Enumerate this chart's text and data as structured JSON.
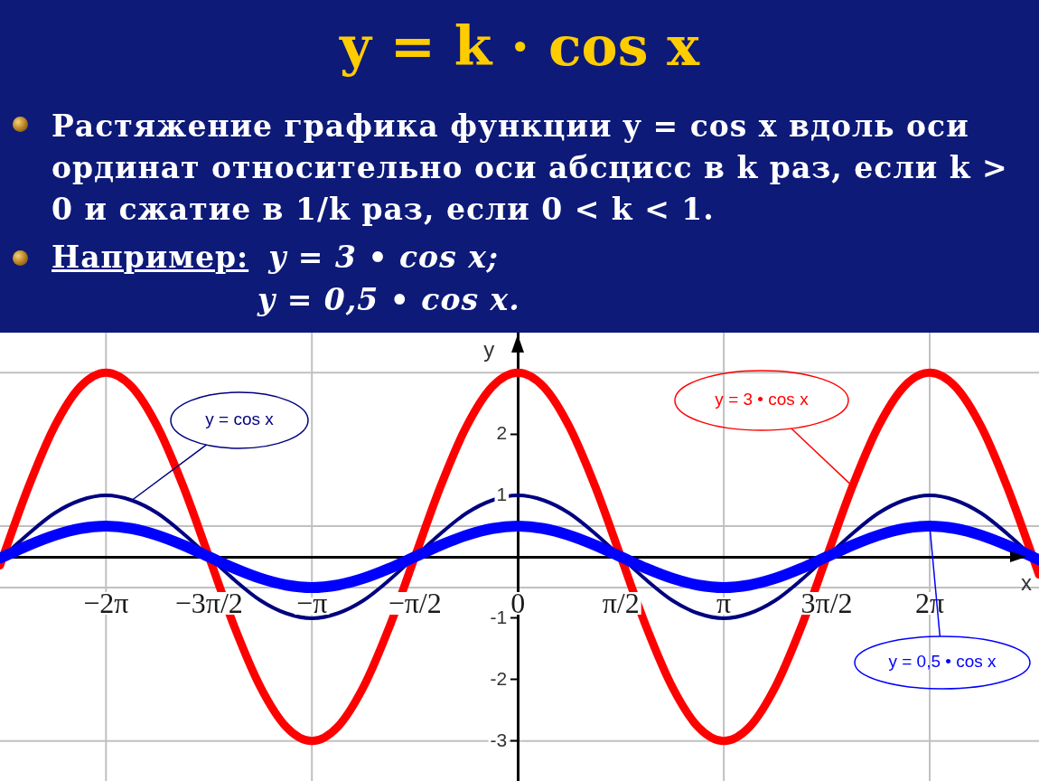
{
  "chart_data": {
    "type": "line",
    "title": "y = k · cos x",
    "annotations": [
      "Растяжение графика функции y = cos x вдоль оси ординат относительно оси абсцисс в k раз, если k > 0 и сжатие в 1/k раз, если 0 < k < 1.",
      "Например:",
      "y = 3 • cos x;",
      "y = 0,5 • cos x."
    ],
    "xlabel": "x",
    "ylabel": "y",
    "x": [
      -7.9,
      -7.854,
      -7.461,
      -7.069,
      -6.676,
      -6.283,
      -5.89,
      -5.498,
      -5.105,
      -4.712,
      -4.32,
      -3.927,
      -3.534,
      -3.142,
      -2.749,
      -2.356,
      -1.963,
      -1.571,
      -1.178,
      -0.785,
      -0.393,
      0,
      0.393,
      0.785,
      1.178,
      1.571,
      1.963,
      2.356,
      2.749,
      3.142,
      3.534,
      3.927,
      4.32,
      4.712,
      5.105,
      5.498,
      5.89,
      6.283,
      6.676,
      7.069,
      7.461,
      7.854,
      7.95
    ],
    "series": [
      {
        "name": "y = cos x",
        "color": "#000080",
        "values": [
          -0.05,
          0,
          0.38,
          0.71,
          0.92,
          1,
          0.92,
          0.71,
          0.38,
          0,
          -0.38,
          -0.71,
          -0.92,
          -1,
          -0.92,
          -0.71,
          -0.38,
          0,
          0.38,
          0.71,
          0.92,
          1,
          0.92,
          0.71,
          0.38,
          0,
          -0.38,
          -0.71,
          -0.92,
          -1,
          -0.92,
          -0.71,
          -0.38,
          0,
          0.38,
          0.71,
          0.92,
          1,
          0.92,
          0.71,
          0.38,
          0,
          -0.1
        ]
      },
      {
        "name": "y = 3 • cos x",
        "color": "#ff0000",
        "values": [
          -0.14,
          0,
          1.15,
          2.12,
          2.77,
          3,
          2.77,
          2.12,
          1.15,
          0,
          -1.15,
          -2.12,
          -2.77,
          -3,
          -2.77,
          -2.12,
          -1.15,
          0,
          1.15,
          2.12,
          2.77,
          3,
          2.77,
          2.12,
          1.15,
          0,
          -1.15,
          -2.12,
          -2.77,
          -3,
          -2.77,
          -2.12,
          -1.15,
          0,
          1.15,
          2.12,
          2.77,
          3,
          2.77,
          2.12,
          1.15,
          0,
          -0.29
        ]
      },
      {
        "name": "y = 0,5 • cos x",
        "color": "#0000ff",
        "values": [
          -0.02,
          0,
          0.19,
          0.35,
          0.46,
          0.5,
          0.46,
          0.35,
          0.19,
          0,
          -0.19,
          -0.35,
          -0.46,
          -0.5,
          -0.46,
          -0.35,
          -0.19,
          0,
          0.19,
          0.35,
          0.46,
          0.5,
          0.46,
          0.35,
          0.19,
          0,
          -0.19,
          -0.35,
          -0.46,
          -0.5,
          -0.46,
          -0.35,
          -0.19,
          0,
          0.19,
          0.35,
          0.46,
          0.5,
          0.46,
          0.35,
          0.19,
          0,
          -0.05
        ]
      }
    ],
    "xlim": [
      -7.9,
      7.95
    ],
    "ylim": [
      -3.65,
      3.65
    ],
    "xticks": [
      {
        "value": -6.283,
        "label": "−2π"
      },
      {
        "value": -4.712,
        "label": "−3π/2"
      },
      {
        "value": -3.142,
        "label": "−π"
      },
      {
        "value": -1.571,
        "label": "−π/2"
      },
      0,
      {
        "value": 1.571,
        "label": "π/2"
      },
      {
        "value": 3.142,
        "label": "π"
      },
      {
        "value": 4.712,
        "label": "3π/2"
      },
      {
        "value": 6.283,
        "label": "2π"
      }
    ],
    "yticks": [
      -3,
      -2,
      -1,
      1,
      2,
      {
        "value": 3,
        "label": null
      }
    ],
    "ref_lines": [
      {
        "axis": "y",
        "value": 3,
        "color": "#c0c0c0"
      },
      {
        "axis": "y",
        "value": 0.5,
        "color": "#c0c0c0"
      },
      {
        "axis": "y",
        "value": -0.5,
        "color": "#c0c0c0"
      },
      {
        "axis": "y",
        "value": -3,
        "color": "#c0c0c0"
      },
      {
        "axis": "x",
        "value": -6.283,
        "color": "#c0c0c0"
      },
      {
        "axis": "x",
        "value": -3.142,
        "color": "#c0c0c0"
      },
      {
        "axis": "x",
        "value": 3.142,
        "color": "#c0c0c0"
      },
      {
        "axis": "x",
        "value": 6.283,
        "color": "#c0c0c0"
      }
    ]
  }
}
